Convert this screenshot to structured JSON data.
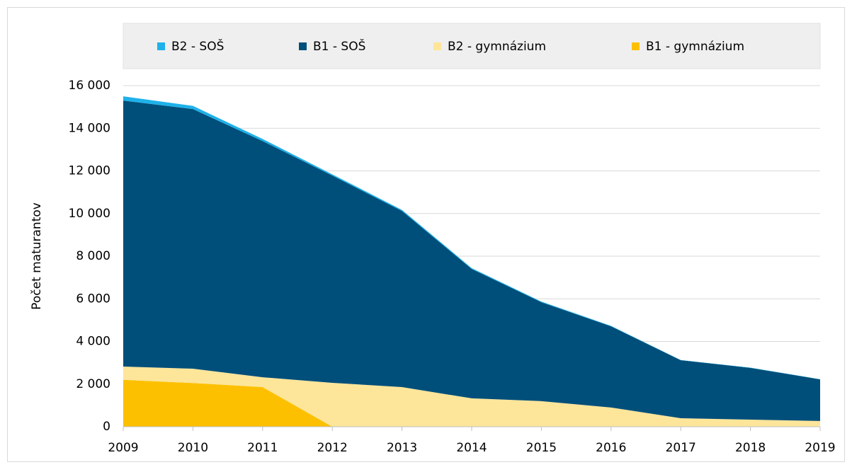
{
  "chart_data": {
    "type": "stacked-area",
    "y_axis_label": "Počet maturantov",
    "categories": [
      "2009",
      "2010",
      "2011",
      "2012",
      "2013",
      "2014",
      "2015",
      "2016",
      "2017",
      "2018",
      "2019"
    ],
    "series": [
      {
        "name": "B2 - SOŠ",
        "color": "#1eb1ea",
        "values": [
          200,
          150,
          100,
          60,
          50,
          40,
          30,
          20,
          10,
          10,
          10
        ]
      },
      {
        "name": "B1 - SOŠ",
        "color": "#004f7a",
        "values": [
          12480,
          12180,
          11080,
          9720,
          8260,
          6070,
          4640,
          3810,
          2720,
          2430,
          1950
        ]
      },
      {
        "name": "B2 - gymnázium",
        "color": "#fde59a",
        "values": [
          620,
          670,
          460,
          2060,
          1860,
          1330,
          1200,
          900,
          400,
          330,
          270
        ]
      },
      {
        "name": "B1 - gymnázium",
        "color": "#fdc000",
        "values": [
          2200,
          2050,
          1860,
          0,
          0,
          0,
          0,
          0,
          0,
          0,
          0
        ]
      }
    ],
    "ylim": [
      0,
      16000
    ],
    "yticks": [
      0,
      {
        "value": 2000,
        "label": "2 000"
      },
      {
        "value": 4000,
        "label": "4 000"
      },
      {
        "value": 6000,
        "label": "6 000"
      },
      {
        "value": 8000,
        "label": "8 000"
      },
      {
        "value": 10000,
        "label": "10 000"
      },
      {
        "value": 12000,
        "label": "12 000"
      },
      {
        "value": 14000,
        "label": "14 000"
      },
      {
        "value": 16000,
        "label": "16 000"
      }
    ],
    "grid": true
  }
}
